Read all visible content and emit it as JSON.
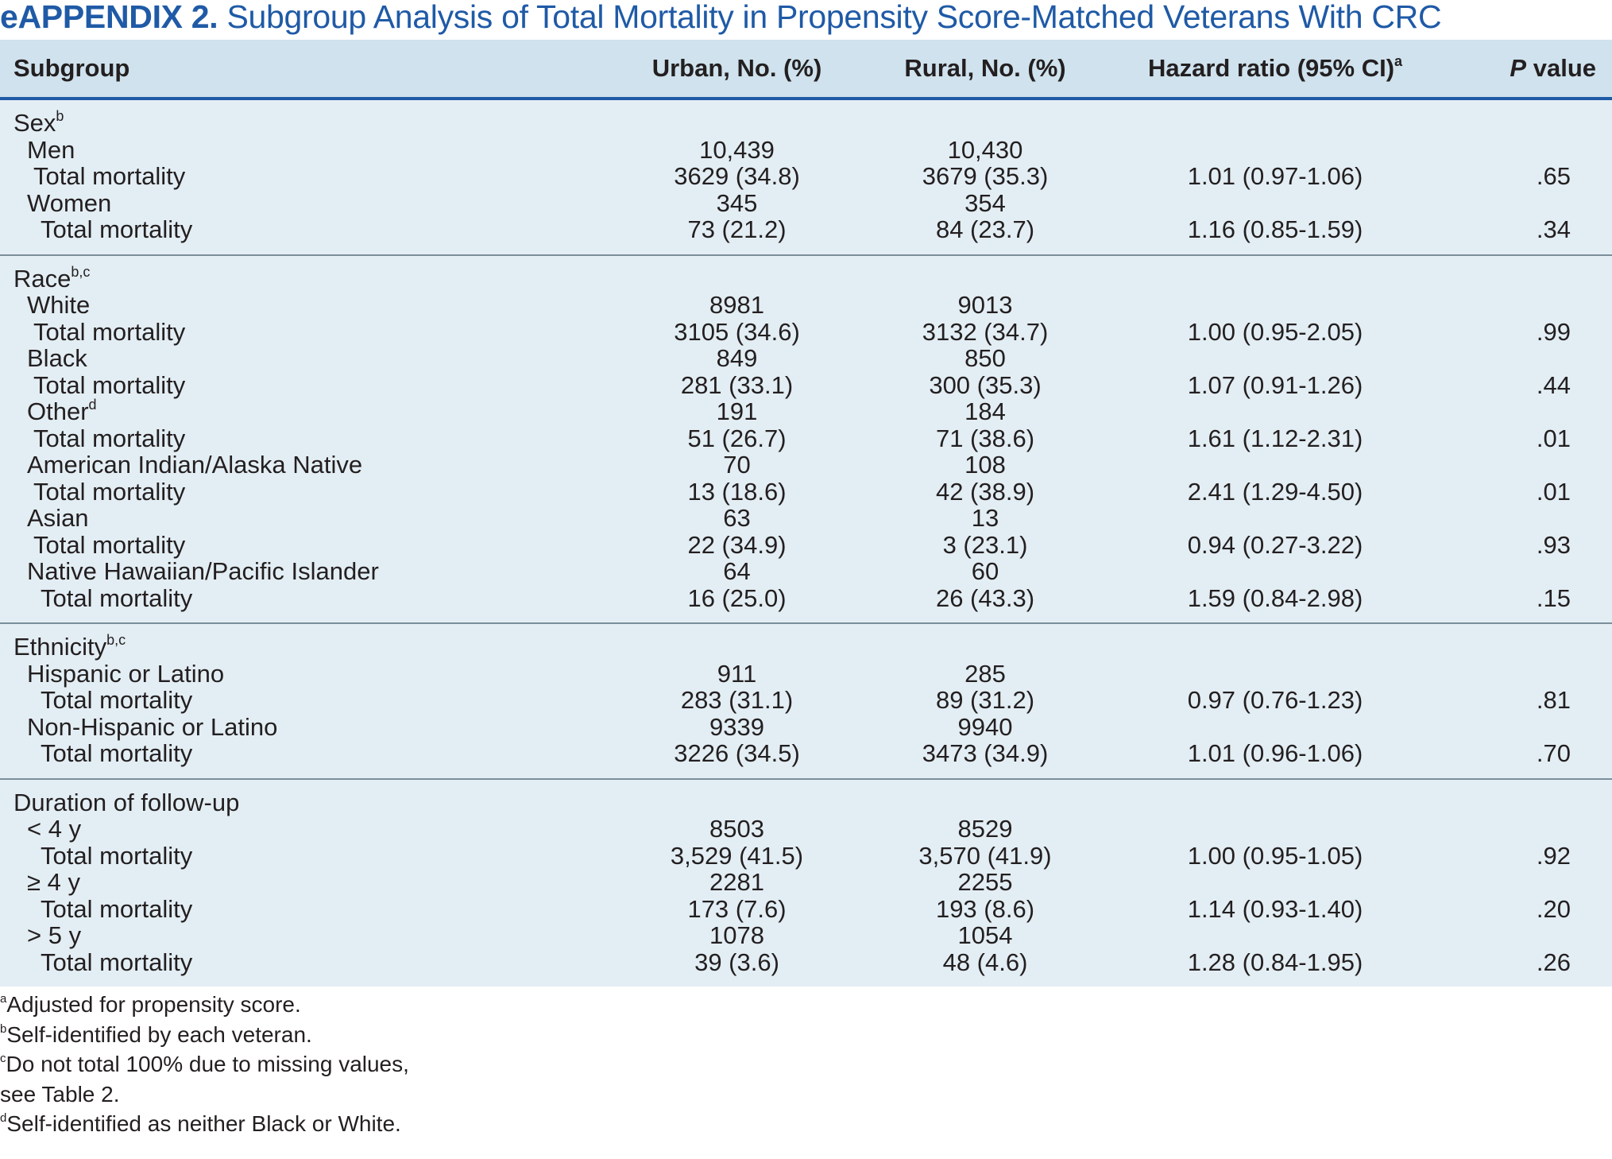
{
  "title": {
    "label": "eAPPENDIX 2.",
    "text": "Subgroup Analysis of Total Mortality in Propensity Score-Matched Veterans With CRC"
  },
  "columns": {
    "subgroup": "Subgroup",
    "urban": "Urban, No. (%)",
    "rural": "Rural, No. (%)",
    "hr": "Hazard ratio (95% CI)",
    "hr_sup": "a",
    "p_italic": "P",
    "p_rest": " value"
  },
  "sections": [
    {
      "header": "Sex",
      "header_sup": "b",
      "rows": [
        {
          "label": "Men",
          "level": 1,
          "urban": "10,439",
          "rural": "10,430",
          "hr": "",
          "p": ""
        },
        {
          "label": "Total mortality",
          "level": 2,
          "urban": "3629 (34.8)",
          "rural": "3679 (35.3)",
          "hr": "1.01 (0.97-1.06)",
          "p": ".65"
        },
        {
          "label": "Women",
          "level": 1,
          "urban": "345",
          "rural": "354",
          "hr": "",
          "p": ""
        },
        {
          "label": "Total mortality",
          "level": 3,
          "urban": "73 (21.2)",
          "rural": "84 (23.7)",
          "hr": "1.16 (0.85-1.59)",
          "p": ".34"
        }
      ]
    },
    {
      "header": "Race",
      "header_sup": "b,c",
      "rows": [
        {
          "label": "White",
          "level": 1,
          "urban": "8981",
          "rural": "9013",
          "hr": "",
          "p": ""
        },
        {
          "label": "Total mortality",
          "level": 2,
          "urban": "3105 (34.6)",
          "rural": "3132 (34.7)",
          "hr": "1.00 (0.95-2.05)",
          "p": ".99"
        },
        {
          "label": "Black",
          "level": 1,
          "urban": "849",
          "rural": "850",
          "hr": "",
          "p": ""
        },
        {
          "label": "Total mortality",
          "level": 2,
          "urban": "281 (33.1)",
          "rural": "300 (35.3)",
          "hr": "1.07 (0.91-1.26)",
          "p": ".44"
        },
        {
          "label": "Other",
          "label_sup": "d",
          "level": 1,
          "urban": "191",
          "rural": "184",
          "hr": "",
          "p": ""
        },
        {
          "label": "Total mortality",
          "level": 2,
          "urban": "51 (26.7)",
          "rural": "71 (38.6)",
          "hr": "1.61 (1.12-2.31)",
          "p": ".01"
        },
        {
          "label": "American Indian/Alaska Native",
          "level": 1,
          "urban": "70",
          "rural": "108",
          "hr": "",
          "p": ""
        },
        {
          "label": "Total mortality",
          "level": 2,
          "urban": "13 (18.6)",
          "rural": "42 (38.9)",
          "hr": "2.41 (1.29-4.50)",
          "p": ".01"
        },
        {
          "label": "Asian",
          "level": 1,
          "urban": "63",
          "rural": "13",
          "hr": "",
          "p": ""
        },
        {
          "label": "Total mortality",
          "level": 2,
          "urban": "22 (34.9)",
          "rural": "3 (23.1)",
          "hr": "0.94 (0.27-3.22)",
          "p": ".93"
        },
        {
          "label": "Native Hawaiian/Pacific Islander",
          "level": 1,
          "urban": "64",
          "rural": "60",
          "hr": "",
          "p": ""
        },
        {
          "label": "Total mortality",
          "level": 3,
          "urban": "16 (25.0)",
          "rural": "26 (43.3)",
          "hr": "1.59 (0.84-2.98)",
          "p": ".15"
        }
      ]
    },
    {
      "header": "Ethnicity",
      "header_sup": "b,c",
      "rows": [
        {
          "label": "Hispanic or Latino",
          "level": 1,
          "urban": "911",
          "rural": "285",
          "hr": "",
          "p": ""
        },
        {
          "label": "Total mortality",
          "level": 3,
          "urban": "283 (31.1)",
          "rural": "89 (31.2)",
          "hr": "0.97 (0.76-1.23)",
          "p": ".81"
        },
        {
          "label": "Non-Hispanic or Latino",
          "level": 1,
          "urban": "9339",
          "rural": "9940",
          "hr": "",
          "p": ""
        },
        {
          "label": "Total mortality",
          "level": 3,
          "urban": "3226 (34.5)",
          "rural": "3473 (34.9)",
          "hr": "1.01 (0.96-1.06)",
          "p": ".70"
        }
      ]
    },
    {
      "header": "Duration of follow-up",
      "header_sup": "",
      "rows": [
        {
          "label": "< 4 y",
          "level": 1,
          "urban": "8503",
          "rural": "8529",
          "hr": "",
          "p": ""
        },
        {
          "label": "Total mortality",
          "level": 3,
          "urban": "3,529 (41.5)",
          "rural": "3,570 (41.9)",
          "hr": "1.00 (0.95-1.05)",
          "p": ".92"
        },
        {
          "label": "≥ 4 y",
          "level": 1,
          "urban": "2281",
          "rural": "2255",
          "hr": "",
          "p": ""
        },
        {
          "label": "Total mortality",
          "level": 3,
          "urban": "173 (7.6)",
          "rural": "193 (8.6)",
          "hr": "1.14 (0.93-1.40)",
          "p": ".20"
        },
        {
          "label": "> 5 y",
          "level": 1,
          "urban": "1078",
          "rural": "1054",
          "hr": "",
          "p": ""
        },
        {
          "label": "Total mortality",
          "level": 3,
          "urban": "39 (3.6)",
          "rural": "48 (4.6)",
          "hr": "1.28 (0.84-1.95)",
          "p": ".26"
        }
      ]
    }
  ],
  "footnotes": [
    {
      "mark": "a",
      "text": "Adjusted for propensity score."
    },
    {
      "mark": "b",
      "text": "Self-identified by each veteran."
    },
    {
      "mark": "c",
      "text": "Do not total 100% due to missing values,"
    },
    {
      "mark": "",
      "text": "see Table 2."
    },
    {
      "mark": "d",
      "text": "Self-identified as neither Black or White."
    }
  ]
}
